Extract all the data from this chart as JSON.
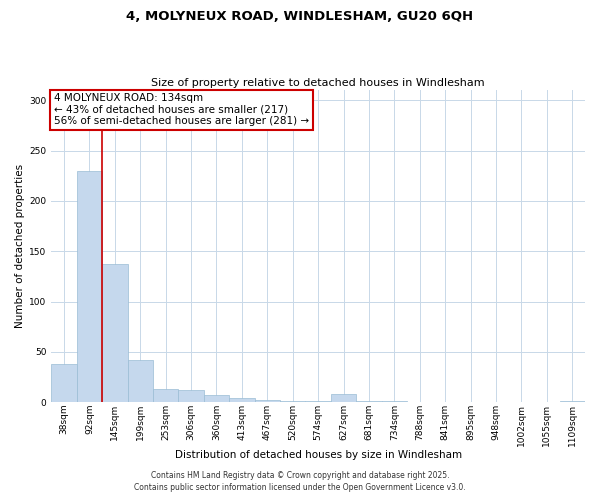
{
  "title": "4, MOLYNEUX ROAD, WINDLESHAM, GU20 6QH",
  "subtitle": "Size of property relative to detached houses in Windlesham",
  "xlabel": "Distribution of detached houses by size in Windlesham",
  "ylabel": "Number of detached properties",
  "bar_labels": [
    "38sqm",
    "92sqm",
    "145sqm",
    "199sqm",
    "253sqm",
    "306sqm",
    "360sqm",
    "413sqm",
    "467sqm",
    "520sqm",
    "574sqm",
    "627sqm",
    "681sqm",
    "734sqm",
    "788sqm",
    "841sqm",
    "895sqm",
    "948sqm",
    "1002sqm",
    "1055sqm",
    "1109sqm"
  ],
  "bar_values": [
    38,
    230,
    137,
    42,
    13,
    12,
    7,
    4,
    2,
    1,
    1,
    8,
    1,
    1,
    0,
    0,
    0,
    0,
    0,
    0,
    1
  ],
  "bar_color": "#c5d8ed",
  "bar_edge_color": "#9abcd4",
  "ylim": [
    0,
    310
  ],
  "yticks": [
    0,
    50,
    100,
    150,
    200,
    250,
    300
  ],
  "property_line_color": "#cc0000",
  "annotation_title": "4 MOLYNEUX ROAD: 134sqm",
  "annotation_line1": "← 43% of detached houses are smaller (217)",
  "annotation_line2": "56% of semi-detached houses are larger (281) →",
  "annotation_box_color": "#ffffff",
  "annotation_box_edge_color": "#cc0000",
  "footer1": "Contains HM Land Registry data © Crown copyright and database right 2025.",
  "footer2": "Contains public sector information licensed under the Open Government Licence v3.0.",
  "background_color": "#ffffff",
  "grid_color": "#c8d8e8",
  "title_fontsize": 9.5,
  "subtitle_fontsize": 8.0,
  "axis_label_fontsize": 7.5,
  "tick_fontsize": 6.5,
  "annotation_fontsize": 7.5,
  "footer_fontsize": 5.5
}
